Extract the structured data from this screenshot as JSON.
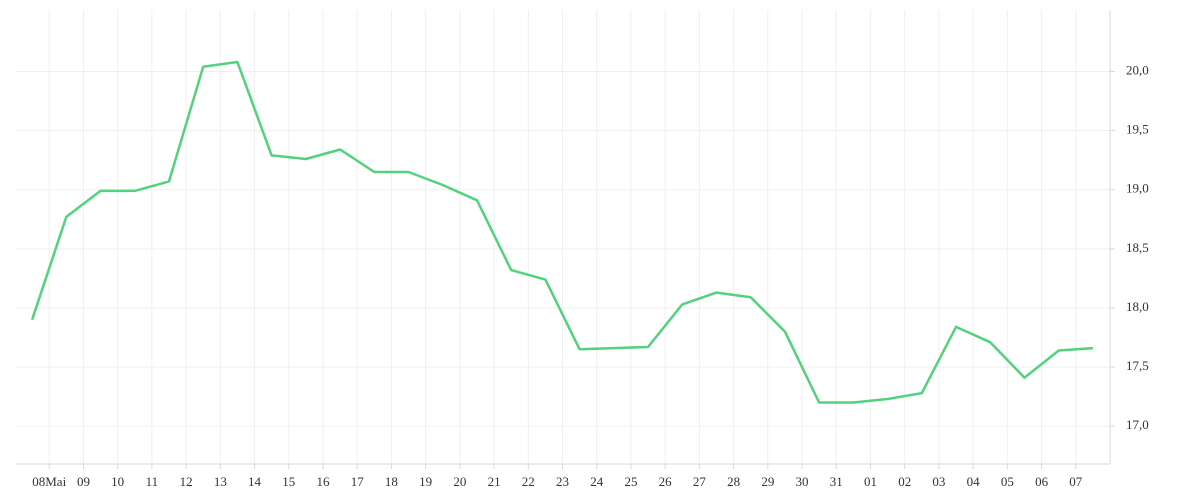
{
  "chart_data": {
    "type": "line",
    "x": [
      -0.5,
      0.5,
      1.5,
      2.5,
      3.5,
      4.5,
      5.5,
      6.5,
      7.5,
      8.5,
      9.5,
      10.5,
      11.5,
      12.5,
      13.5,
      14.5,
      15.5,
      16.5,
      17.5,
      18.5,
      19.5,
      20.5,
      21.5,
      22.5,
      23.5,
      24.5,
      25.5,
      26.5,
      27.5,
      28.5,
      29.5,
      30.5
    ],
    "series": [
      {
        "color": "#52d27c",
        "values": [
          17.9,
          18.77,
          18.99,
          18.99,
          19.07,
          20.04,
          20.08,
          19.29,
          19.26,
          19.34,
          19.15,
          19.15,
          19.04,
          18.91,
          18.32,
          18.24,
          17.65,
          17.66,
          17.67,
          18.03,
          18.13,
          18.09,
          17.8,
          17.2,
          17.2,
          17.23,
          17.28,
          17.84,
          17.71,
          17.41,
          17.64,
          17.66
        ]
      }
    ],
    "xlim": [
      -1,
      31
    ],
    "xticks": [
      {
        "value": 0,
        "label": "08Mai"
      },
      {
        "value": 1,
        "label": "09"
      },
      {
        "value": 2,
        "label": "10"
      },
      {
        "value": 3,
        "label": "11"
      },
      {
        "value": 4,
        "label": "12"
      },
      {
        "value": 5,
        "label": "13"
      },
      {
        "value": 6,
        "label": "14"
      },
      {
        "value": 7,
        "label": "15"
      },
      {
        "value": 8,
        "label": "16"
      },
      {
        "value": 9,
        "label": "17"
      },
      {
        "value": 10,
        "label": "18"
      },
      {
        "value": 11,
        "label": "19"
      },
      {
        "value": 12,
        "label": "20"
      },
      {
        "value": 13,
        "label": "21"
      },
      {
        "value": 14,
        "label": "22"
      },
      {
        "value": 15,
        "label": "23"
      },
      {
        "value": 16,
        "label": "24"
      },
      {
        "value": 17,
        "label": "25"
      },
      {
        "value": 18,
        "label": "26"
      },
      {
        "value": 19,
        "label": "27"
      },
      {
        "value": 20,
        "label": "28"
      },
      {
        "value": 21,
        "label": "29"
      },
      {
        "value": 22,
        "label": "30"
      },
      {
        "value": 23,
        "label": "31"
      },
      {
        "value": 24,
        "label": "01"
      },
      {
        "value": 25,
        "label": "02"
      },
      {
        "value": 26,
        "label": "03"
      },
      {
        "value": 27,
        "label": "04"
      },
      {
        "value": 28,
        "label": "05"
      },
      {
        "value": 29,
        "label": "06"
      },
      {
        "value": 30,
        "label": "07"
      }
    ],
    "ylim": [
      16.68,
      20.52
    ],
    "yticks": [
      {
        "value": 17,
        "label": "17,0"
      },
      {
        "value": 17.5,
        "label": "17,5"
      },
      {
        "value": 18,
        "label": "18,0"
      },
      {
        "value": 18.5,
        "label": "18,5"
      },
      {
        "value": 19,
        "label": "19,0"
      },
      {
        "value": 19.5,
        "label": "19,5"
      },
      {
        "value": 20,
        "label": "20,0"
      }
    ],
    "grid": true
  }
}
